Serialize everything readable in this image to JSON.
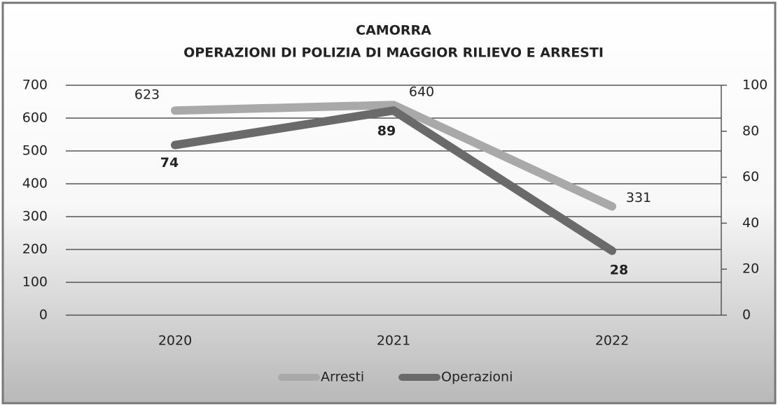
{
  "chart_data": {
    "type": "line",
    "title": "CAMORRA",
    "subtitle": "OPERAZIONI DI POLIZIA DI MAGGIOR RILIEVO E ARRESTI",
    "categories": [
      "2020",
      "2021",
      "2022"
    ],
    "series": [
      {
        "name": "Arresti",
        "color": "#a9a9a9",
        "values": [
          623,
          640,
          331
        ]
      },
      {
        "name": "Operazioni",
        "color": "#6a6a6a",
        "values": [
          74,
          89,
          28
        ],
        "axis": "y2"
      }
    ],
    "ylim": [
      0,
      700
    ],
    "yticks": [
      0,
      100,
      200,
      300,
      400,
      500,
      600,
      700
    ],
    "y2lim": [
      0,
      100
    ],
    "y2ticks": [
      0,
      20,
      40,
      60,
      80,
      100
    ],
    "grid": true,
    "legend": "bottom"
  }
}
